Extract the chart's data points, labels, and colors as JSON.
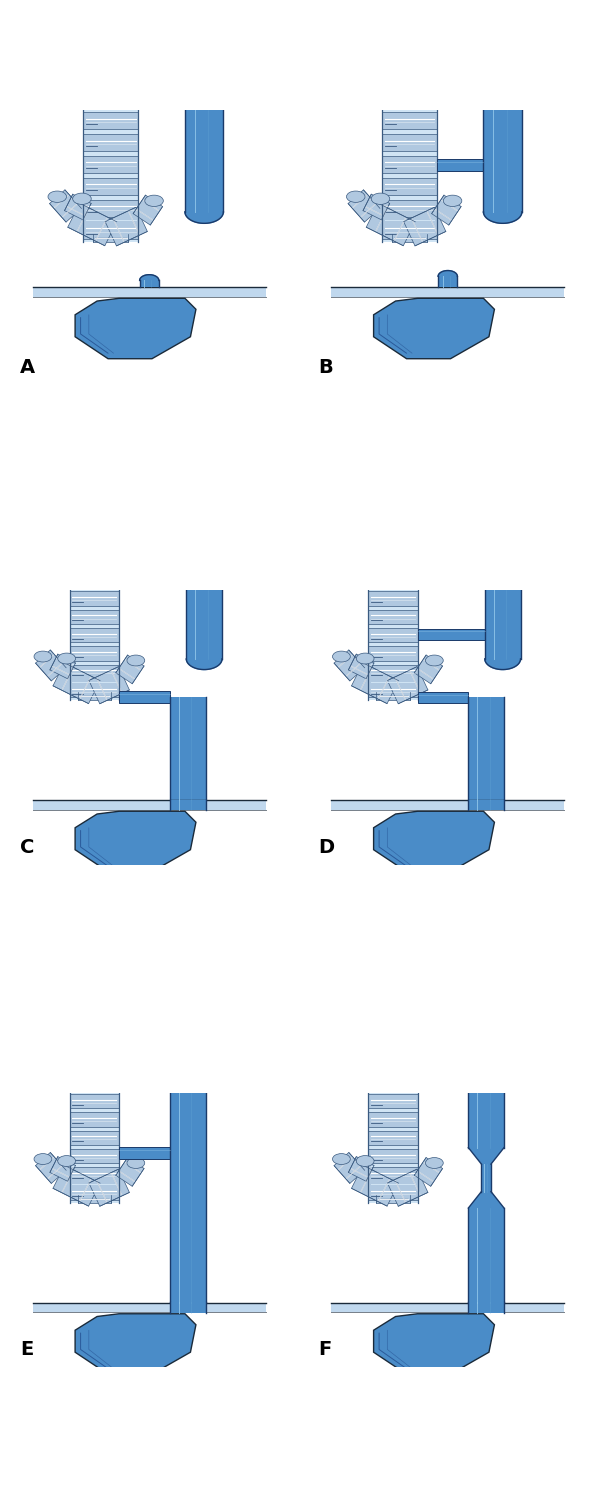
{
  "bg_color": "#ffffff",
  "fill_light": "#b8cfe8",
  "fill_mid": "#7aafd4",
  "fill_dark": "#3a7ab8",
  "fill_tube": "#4a8cc8",
  "outline": "#1a2a3a",
  "outline_light": "#2a3a5a",
  "stomach_fill": "#4a8cc8",
  "stomach_dark": "#1a3a6a",
  "diap_fill": "#c0d8ee",
  "ring_fill": "#b0c8e0",
  "ring_light": "#d0e4f4",
  "ring_dark": "#3a5a80",
  "white": "#ffffff",
  "label_fs": 14,
  "panels": [
    "A",
    "B",
    "C",
    "D",
    "E",
    "F"
  ]
}
